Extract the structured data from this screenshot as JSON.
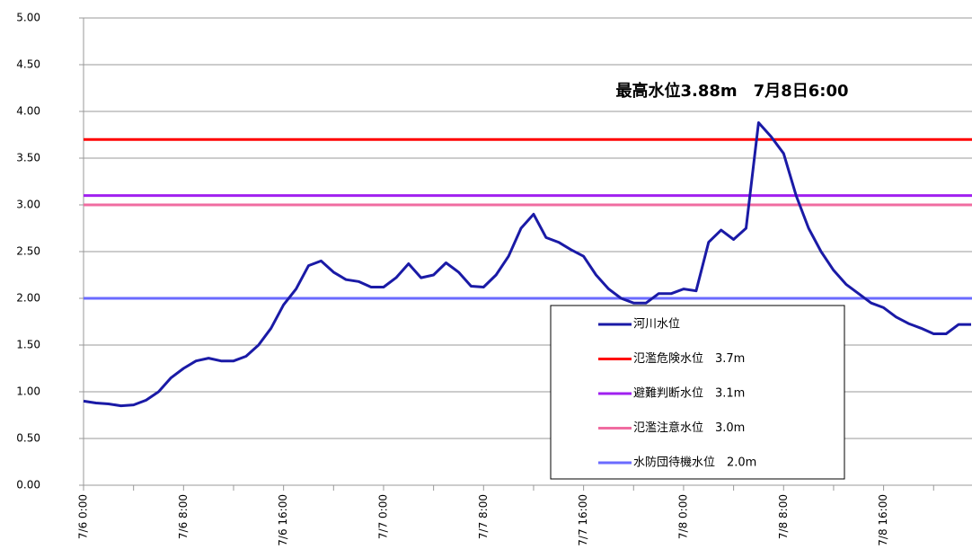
{
  "chart_data": {
    "type": "line",
    "annotation": "最高水位3.88m　7月8日6:00",
    "categories": [
      "7/6 0:00",
      null,
      null,
      null,
      null,
      null,
      null,
      null,
      "7/6 8:00",
      null,
      null,
      null,
      null,
      null,
      null,
      null,
      "7/6 16:00",
      null,
      null,
      null,
      null,
      null,
      null,
      null,
      "7/7 0:00",
      null,
      null,
      null,
      null,
      null,
      null,
      null,
      "7/7 8:00",
      null,
      null,
      null,
      null,
      null,
      null,
      null,
      "7/7 16:00",
      null,
      null,
      null,
      null,
      null,
      null,
      null,
      "7/8 0:00",
      null,
      null,
      null,
      null,
      null,
      null,
      null,
      "7/8 8:00",
      null,
      null,
      null,
      null,
      null,
      null,
      null,
      "7/8 16:00",
      null,
      null,
      null,
      null,
      null,
      null,
      null
    ],
    "series": [
      {
        "name": "河川水位",
        "color": "#1a1aa6",
        "values": [
          0.9,
          0.88,
          0.87,
          0.85,
          0.86,
          0.91,
          1.0,
          1.15,
          1.25,
          1.33,
          1.36,
          1.33,
          1.33,
          1.38,
          1.5,
          1.68,
          1.93,
          2.1,
          2.35,
          2.4,
          2.28,
          2.2,
          2.18,
          2.12,
          2.12,
          2.22,
          2.37,
          2.22,
          2.25,
          2.38,
          2.28,
          2.13,
          2.12,
          2.25,
          2.45,
          2.75,
          2.9,
          2.65,
          2.6,
          2.52,
          2.45,
          2.25,
          2.1,
          2.0,
          1.95,
          1.95,
          2.05,
          2.05,
          2.1,
          2.08,
          2.6,
          2.73,
          2.63,
          2.75,
          3.88,
          3.73,
          3.55,
          3.1,
          2.75,
          2.5,
          2.3,
          2.15,
          2.05,
          1.95,
          1.9,
          1.8,
          1.73,
          1.68,
          1.62,
          1.62,
          1.72,
          1.72
        ]
      }
    ],
    "reference_lines": [
      {
        "name": "氾濫危険水位　3.7m",
        "color": "#ff0000",
        "value": 3.7
      },
      {
        "name": "避難判断水位　3.1m",
        "color": "#a020f0",
        "value": 3.1
      },
      {
        "name": "氾濫注意水位　3.0m",
        "color": "#f06ca0",
        "value": 3.0
      },
      {
        "name": "水防団待機水位　2.0m",
        "color": "#6b6bff",
        "value": 2.0
      }
    ],
    "ylim": [
      0,
      5
    ],
    "yticks": [
      {
        "value": 0,
        "label": "0.00"
      },
      {
        "value": 0.5,
        "label": "0.50"
      },
      {
        "value": 1,
        "label": "1.00"
      },
      {
        "value": 1.5,
        "label": "1.50"
      },
      {
        "value": 2,
        "label": "2.00"
      },
      {
        "value": 2.5,
        "label": "2.50"
      },
      {
        "value": 3,
        "label": "3.00"
      },
      {
        "value": 3.5,
        "label": "3.50"
      },
      {
        "value": 4,
        "label": "4.00"
      },
      {
        "value": 4.5,
        "label": "4.50"
      },
      {
        "value": 5,
        "label": "5.00"
      }
    ],
    "grid": true
  }
}
